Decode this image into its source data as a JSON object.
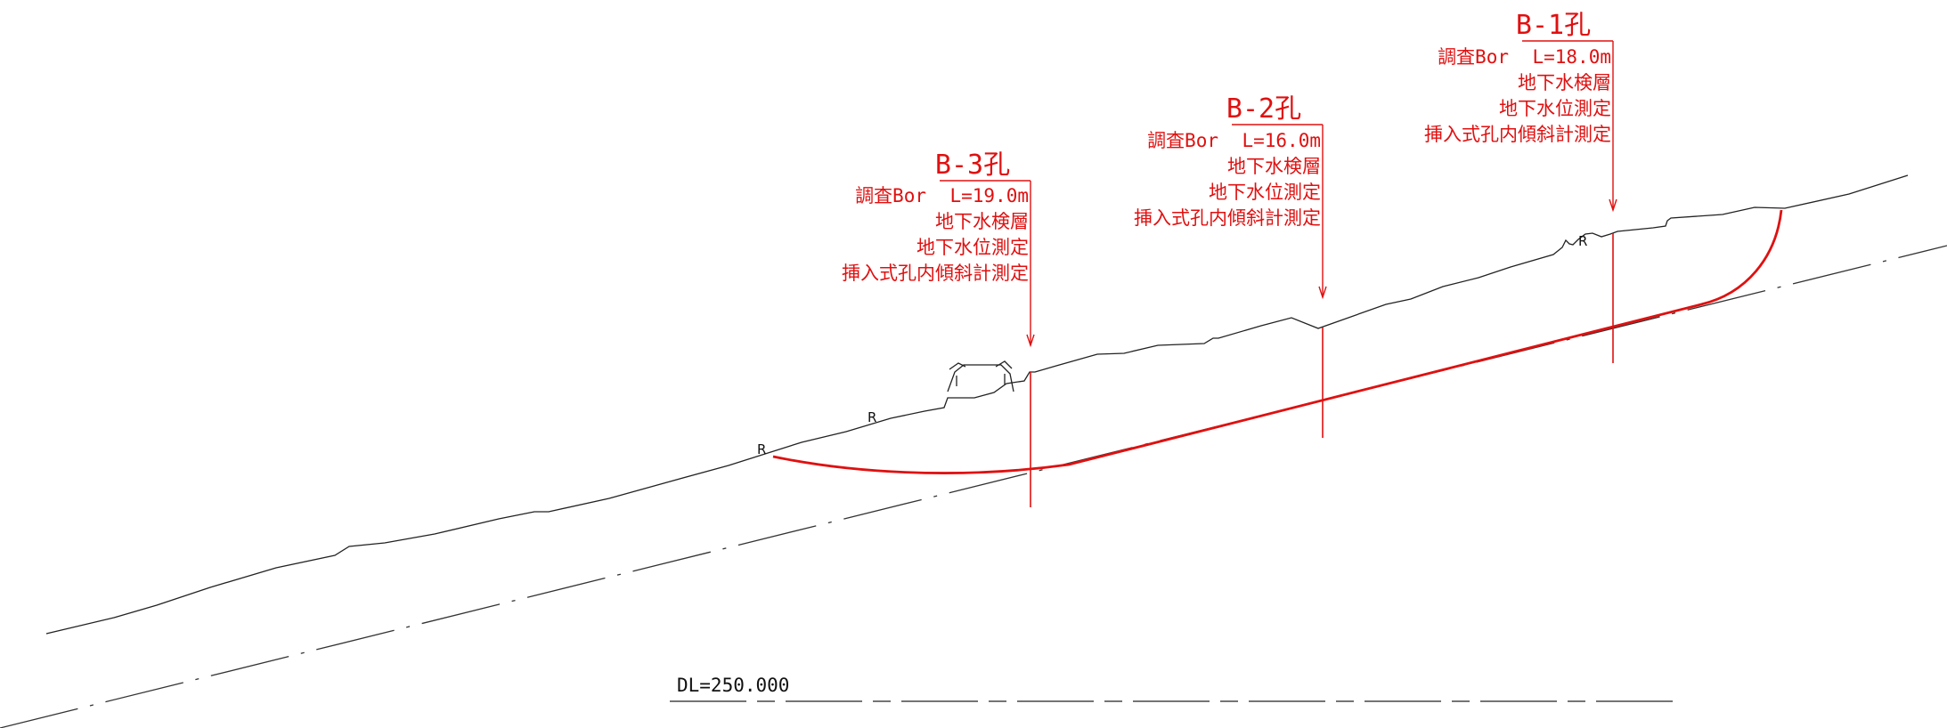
{
  "colors": {
    "annotation": "#e01010",
    "ground_line": "#222222",
    "slip_surface": "#e01010",
    "reference_line": "#333333"
  },
  "boreholes": [
    {
      "id": "b1",
      "title": "B-1孔",
      "line1_prefix": "調査Bor",
      "line1_length": "L=18.0m",
      "tests": [
        "地下水検層",
        "地下水位測定",
        "挿入式孔内傾斜計測定"
      ]
    },
    {
      "id": "b2",
      "title": "B-2孔",
      "line1_prefix": "調査Bor",
      "line1_length": "L=16.0m",
      "tests": [
        "地下水検層",
        "地下水位測定",
        "挿入式孔内傾斜計測定"
      ]
    },
    {
      "id": "b3",
      "title": "B-3孔",
      "line1_prefix": "調査Bor",
      "line1_length": "L=19.0m",
      "tests": [
        "地下水検層",
        "地下水位測定",
        "挿入式孔内傾斜計測定"
      ]
    }
  ],
  "ground_markers": [
    "R",
    "R",
    "R"
  ],
  "datum_label": "DL=250.000"
}
